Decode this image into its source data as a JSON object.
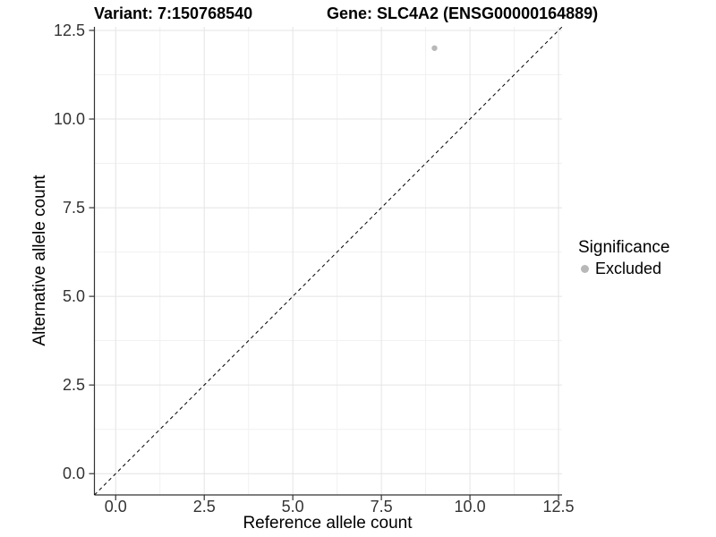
{
  "chart_data": {
    "type": "scatter",
    "title_left": "Variant: 7:150768540",
    "title_right": "Gene: SLC4A2 (ENSG00000164889)",
    "xlabel": "Reference allele count",
    "ylabel": "Alternative allele count",
    "xlim": [
      -0.6,
      12.6
    ],
    "ylim": [
      -0.6,
      12.6
    ],
    "x_ticks": [
      0,
      2.5,
      5,
      7.5,
      10,
      12.5
    ],
    "x_tick_labels": [
      "0.0",
      "2.5",
      "5.0",
      "7.5",
      "10.0",
      "12.5"
    ],
    "y_ticks": [
      0,
      2.5,
      5,
      7.5,
      10,
      12.5
    ],
    "y_tick_labels": [
      "0.0",
      "2.5",
      "5.0",
      "7.5",
      "10.0",
      "12.5"
    ],
    "minor_ticks": [
      1.25,
      3.75,
      6.25,
      8.75,
      11.25
    ],
    "grid": true,
    "legend_position": "right",
    "identity_line": {
      "style": "dashed",
      "color": "#000000"
    },
    "points": [
      {
        "x": 9,
        "y": 12,
        "series": "Excluded"
      }
    ],
    "legend": {
      "title": "Significance",
      "items": [
        {
          "label": "Excluded",
          "color": "#b8b8b8"
        }
      ]
    },
    "colors": {
      "background": "#ffffff",
      "grid_major": "#e4e4e4",
      "grid_minor": "#f1f1f1",
      "axis_line": "#333333",
      "tick_mark": "#333333",
      "tick_label": "#333333",
      "point": "#bcbcbc"
    }
  }
}
